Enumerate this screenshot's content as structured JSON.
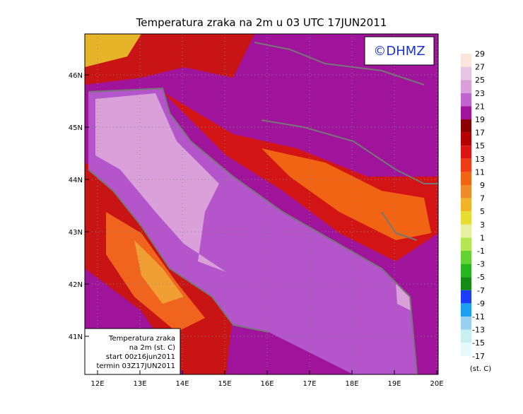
{
  "header": {
    "title": "Temperatura zraka na 2m u 03 UTC 17JUN2011",
    "logo": "©DHMZ"
  },
  "map": {
    "lat_labels": [
      "46N",
      "45N",
      "44N",
      "43N",
      "42N",
      "41N"
    ],
    "lon_labels": [
      "12E",
      "13E",
      "14E",
      "15E",
      "16E",
      "17E",
      "18E",
      "19E",
      "20E"
    ]
  },
  "info_box": {
    "lines": [
      "Temperatura zraka",
      "na 2m (st. C)",
      "start 00z16jun2011",
      "termin 03Z17JUN2011"
    ]
  },
  "legend": {
    "labels": [
      "29",
      "27",
      "25",
      "23",
      "21",
      "19",
      "17",
      "15",
      "13",
      "11",
      "9",
      "7",
      "5",
      "3",
      "1",
      "-1",
      "-3",
      "-5",
      "-7",
      "-9",
      "-11",
      "-13",
      "-15",
      "-17"
    ],
    "colors": [
      "#fbe6dc",
      "#e6c6e2",
      "#d9a0d9",
      "#c064d0",
      "#a0149c",
      "#8c0000",
      "#b40000",
      "#dc1414",
      "#f03c14",
      "#f06414",
      "#f08c28",
      "#f0b428",
      "#e6dc32",
      "#e6f0a0",
      "#b4e650",
      "#64d232",
      "#28b41e",
      "#148c14",
      "#1e3cff",
      "#1ea0f0",
      "#96d2f0",
      "#c8f0f0",
      "#e6fafa"
    ],
    "unit": "(st. C)"
  }
}
